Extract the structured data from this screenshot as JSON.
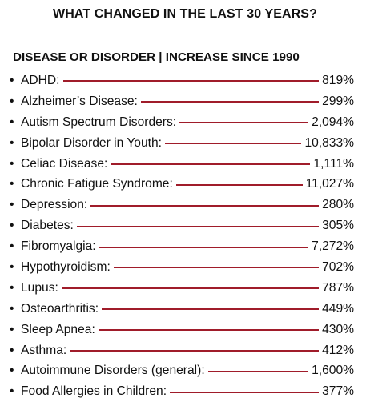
{
  "title": "WHAT CHANGED IN THE LAST 30 YEARS?",
  "subhead": "DISEASE OR DISORDER | INCREASE SINCE 1990",
  "bullet": "•",
  "accent_line_color": "#a01c2a",
  "items": [
    {
      "label": "ADHD:",
      "value": "819%"
    },
    {
      "label": "Alzheimer’s Disease:",
      "value": "299%"
    },
    {
      "label": "Autism Spectrum Disorders:",
      "value": "2,094%"
    },
    {
      "label": "Bipolar Disorder in Youth:",
      "value": "10,833%"
    },
    {
      "label": "Celiac Disease:",
      "value": "1,111%"
    },
    {
      "label": "Chronic Fatigue Syndrome:",
      "value": "11,027%"
    },
    {
      "label": "Depression:",
      "value": "280%"
    },
    {
      "label": "Diabetes:",
      "value": "305%"
    },
    {
      "label": "Fibromyalgia:",
      "value": "7,272%"
    },
    {
      "label": "Hypothyroidism:",
      "value": "702%"
    },
    {
      "label": "Lupus:",
      "value": "787%"
    },
    {
      "label": "Osteoarthritis:",
      "value": "449%"
    },
    {
      "label": "Sleep Apnea:",
      "value": "430%"
    },
    {
      "label": "Asthma:",
      "value": "412%"
    },
    {
      "label": "Autoimmune Disorders (general):",
      "value": "1,600%"
    },
    {
      "label": "Food Allergies in Children:",
      "value": "377%"
    }
  ]
}
